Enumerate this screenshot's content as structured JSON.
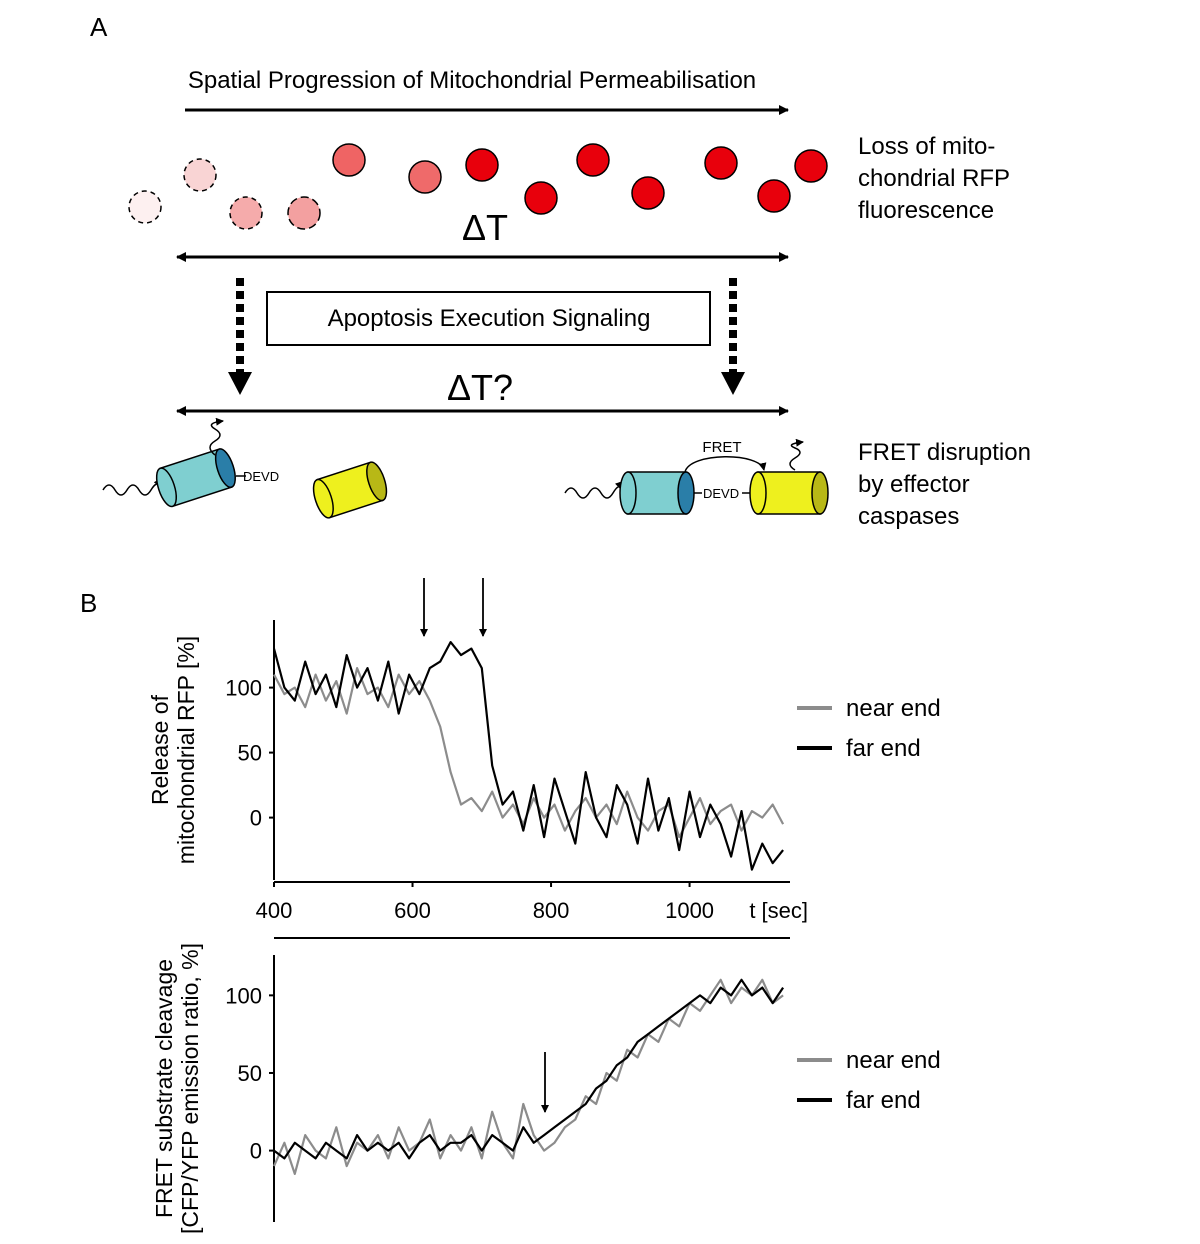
{
  "panel_a": {
    "label": "A",
    "title": "Spatial Progression of Mitochondrial Permeabilisation",
    "rfp_label": [
      "Loss of mito-",
      "chondrial RFP",
      "fluorescence"
    ],
    "delta_t": "ΔT",
    "signaling": "Apoptosis Execution Signaling",
    "delta_t_q": "ΔT?",
    "devd_left": "DEVD",
    "devd_right": "DEVD",
    "fret": "FRET",
    "fret_label": [
      "FRET disruption",
      "by effector",
      "caspases"
    ]
  },
  "panel_b": {
    "label": "B"
  },
  "chart_data": [
    {
      "type": "line",
      "ylabel": [
        "Release of",
        "mitochondrial RFP [%]"
      ],
      "xlabel": "t [sec]",
      "x": [
        400,
        415,
        430,
        445,
        460,
        475,
        490,
        505,
        520,
        535,
        550,
        565,
        580,
        595,
        610,
        625,
        640,
        655,
        670,
        685,
        700,
        715,
        730,
        745,
        760,
        775,
        790,
        805,
        820,
        835,
        850,
        865,
        880,
        895,
        910,
        925,
        940,
        955,
        970,
        985,
        1000,
        1015,
        1030,
        1045,
        1060,
        1075,
        1090,
        1105,
        1120,
        1135
      ],
      "xlim": [
        400,
        1145
      ],
      "xticks": [
        400,
        600,
        800,
        1000
      ],
      "ylim": [
        -48,
        152
      ],
      "yticks": [
        0,
        50,
        100
      ],
      "series": [
        {
          "name": "near end",
          "color": "#8c8c8c",
          "values": [
            110,
            95,
            100,
            85,
            110,
            90,
            105,
            80,
            115,
            95,
            100,
            85,
            110,
            95,
            105,
            90,
            70,
            35,
            10,
            15,
            5,
            20,
            0,
            10,
            -5,
            15,
            0,
            10,
            -10,
            5,
            15,
            0,
            10,
            -5,
            20,
            0,
            -10,
            5,
            10,
            -15,
            0,
            15,
            -5,
            5,
            10,
            -10,
            5,
            0,
            10,
            -5
          ]
        },
        {
          "name": "far end",
          "color": "#000000",
          "values": [
            130,
            100,
            90,
            120,
            95,
            110,
            85,
            125,
            100,
            115,
            90,
            120,
            80,
            110,
            95,
            115,
            120,
            135,
            125,
            130,
            115,
            40,
            10,
            20,
            -10,
            25,
            -15,
            30,
            5,
            -20,
            35,
            0,
            -15,
            25,
            10,
            -20,
            30,
            -10,
            15,
            -25,
            20,
            -15,
            10,
            -5,
            -30,
            5,
            -40,
            -20,
            -35,
            -25
          ]
        }
      ]
    },
    {
      "type": "line",
      "ylabel": [
        "FRET substrate cleavage",
        "[CFP/YFP emission ratio, %]"
      ],
      "x": [
        400,
        415,
        430,
        445,
        460,
        475,
        490,
        505,
        520,
        535,
        550,
        565,
        580,
        595,
        610,
        625,
        640,
        655,
        670,
        685,
        700,
        715,
        730,
        745,
        760,
        775,
        790,
        805,
        820,
        835,
        850,
        865,
        880,
        895,
        910,
        925,
        940,
        955,
        970,
        985,
        1000,
        1015,
        1030,
        1045,
        1060,
        1075,
        1090,
        1105,
        1120,
        1135
      ],
      "xlim": [
        400,
        1145
      ],
      "ylim": [
        -46,
        126
      ],
      "yticks": [
        0,
        50,
        100
      ],
      "series": [
        {
          "name": "near end",
          "color": "#8c8c8c",
          "values": [
            -10,
            5,
            -15,
            10,
            0,
            -5,
            15,
            -10,
            5,
            0,
            10,
            -5,
            15,
            0,
            5,
            20,
            -5,
            10,
            0,
            15,
            -5,
            25,
            5,
            -5,
            30,
            10,
            0,
            5,
            15,
            20,
            35,
            30,
            50,
            45,
            65,
            60,
            75,
            70,
            85,
            80,
            95,
            90,
            100,
            110,
            95,
            105,
            100,
            110,
            95,
            100
          ]
        },
        {
          "name": "far end",
          "color": "#000000",
          "values": [
            0,
            -5,
            5,
            0,
            -5,
            5,
            0,
            -5,
            10,
            0,
            5,
            0,
            5,
            -5,
            5,
            10,
            0,
            5,
            5,
            10,
            0,
            10,
            5,
            0,
            15,
            5,
            10,
            15,
            20,
            25,
            30,
            40,
            45,
            55,
            60,
            70,
            75,
            80,
            85,
            90,
            95,
            100,
            95,
            105,
            100,
            110,
            100,
            105,
            95,
            105
          ]
        }
      ]
    }
  ]
}
